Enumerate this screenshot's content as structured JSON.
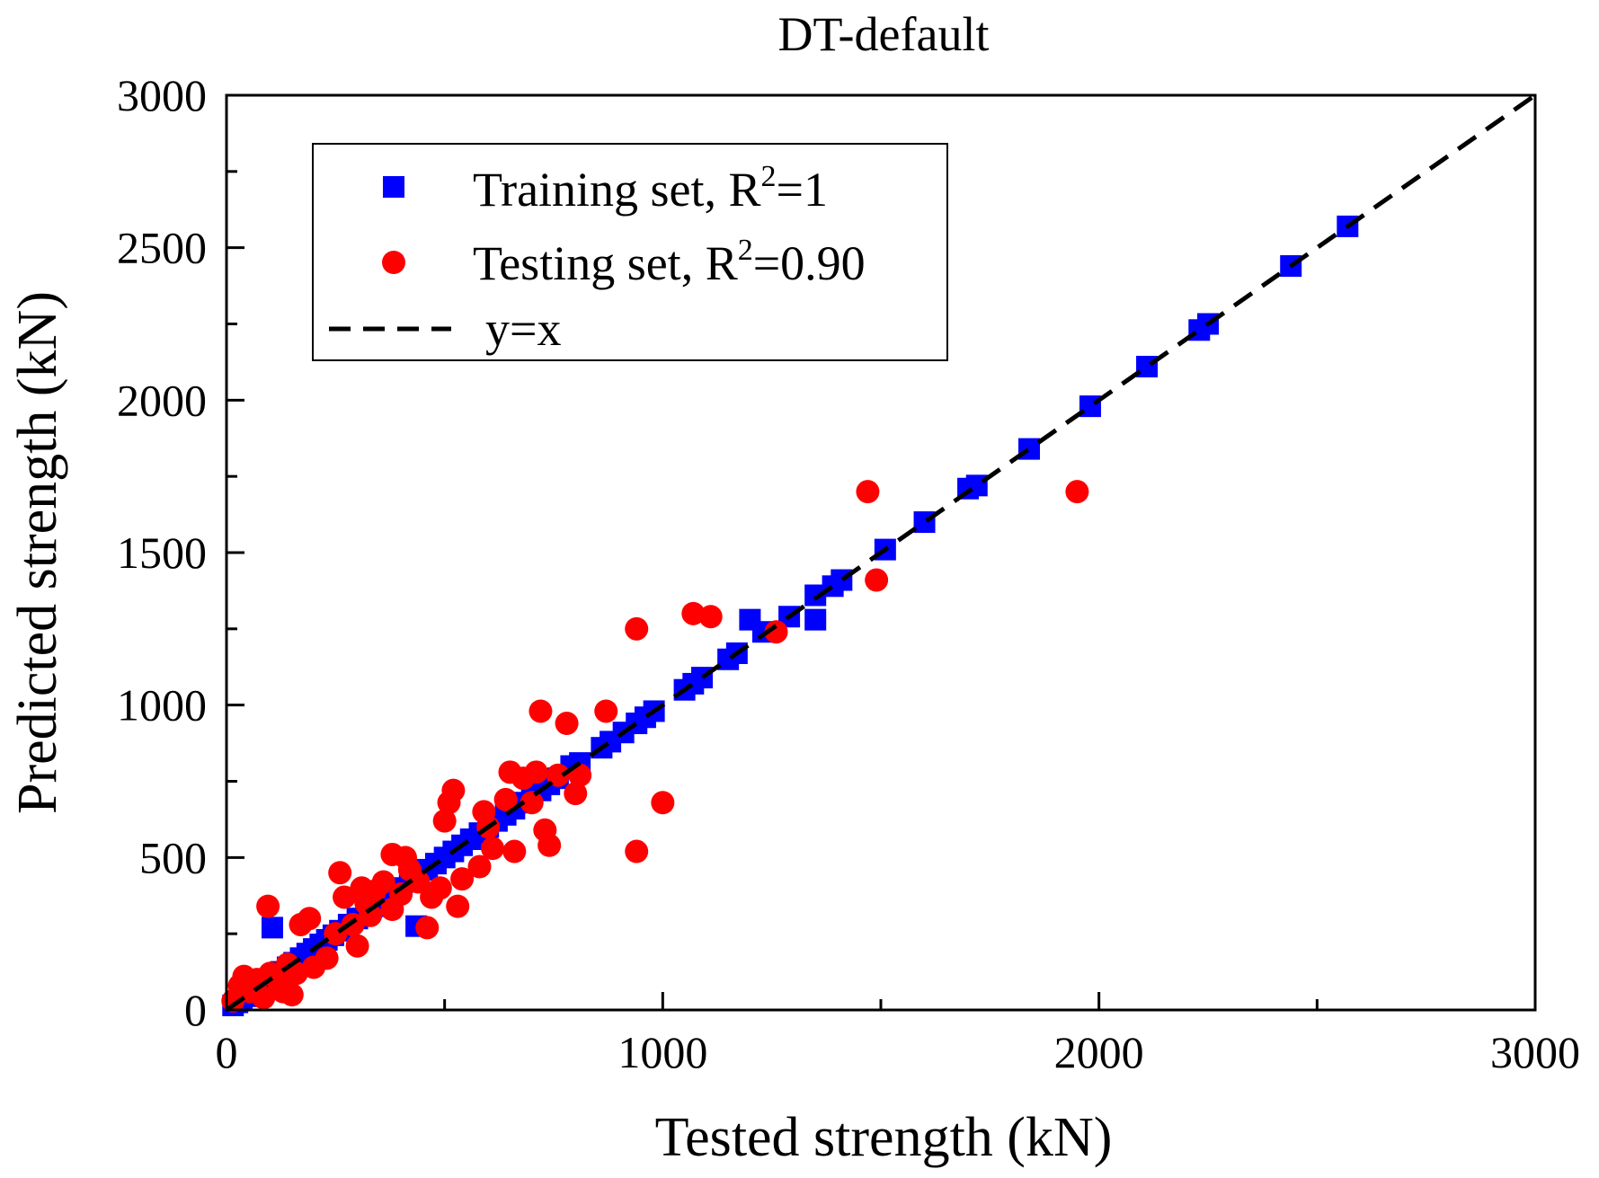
{
  "chart_data": {
    "type": "scatter",
    "title": "DT-default",
    "xlabel": "Tested strength (kN)",
    "ylabel": "Predicted strength (kN)",
    "xlim": [
      0,
      3000
    ],
    "ylim": [
      0,
      3000
    ],
    "xticks": [
      0,
      1000,
      2000,
      3000
    ],
    "yticks": [
      0,
      500,
      1000,
      1500,
      2000,
      2500,
      3000
    ],
    "grid": false,
    "legend_position": "top-left",
    "series": [
      {
        "name": "Training set, R²=1",
        "legend_text": "Training set, R",
        "legend_sup": "2",
        "legend_suffix": "=1",
        "marker": "square",
        "color": "#0000ff",
        "points": [
          [
            15,
            15
          ],
          [
            25,
            25
          ],
          [
            35,
            35
          ],
          [
            45,
            45
          ],
          [
            55,
            55
          ],
          [
            65,
            65
          ],
          [
            80,
            80
          ],
          [
            95,
            95
          ],
          [
            105,
            270
          ],
          [
            110,
            110
          ],
          [
            125,
            125
          ],
          [
            140,
            140
          ],
          [
            155,
            155
          ],
          [
            170,
            170
          ],
          [
            185,
            185
          ],
          [
            200,
            200
          ],
          [
            215,
            215
          ],
          [
            230,
            230
          ],
          [
            245,
            245
          ],
          [
            260,
            260
          ],
          [
            280,
            280
          ],
          [
            300,
            300
          ],
          [
            320,
            320
          ],
          [
            340,
            340
          ],
          [
            360,
            360
          ],
          [
            380,
            380
          ],
          [
            400,
            400
          ],
          [
            420,
            420
          ],
          [
            435,
            275
          ],
          [
            440,
            440
          ],
          [
            460,
            460
          ],
          [
            480,
            480
          ],
          [
            500,
            500
          ],
          [
            520,
            520
          ],
          [
            540,
            540
          ],
          [
            560,
            560
          ],
          [
            580,
            580
          ],
          [
            600,
            600
          ],
          [
            620,
            620
          ],
          [
            640,
            640
          ],
          [
            660,
            660
          ],
          [
            680,
            680
          ],
          [
            700,
            700
          ],
          [
            720,
            720
          ],
          [
            740,
            740
          ],
          [
            760,
            760
          ],
          [
            790,
            800
          ],
          [
            810,
            810
          ],
          [
            860,
            860
          ],
          [
            880,
            880
          ],
          [
            910,
            910
          ],
          [
            940,
            940
          ],
          [
            960,
            960
          ],
          [
            980,
            980
          ],
          [
            1050,
            1050
          ],
          [
            1070,
            1070
          ],
          [
            1090,
            1090
          ],
          [
            1150,
            1150
          ],
          [
            1170,
            1170
          ],
          [
            1200,
            1280
          ],
          [
            1230,
            1240
          ],
          [
            1290,
            1290
          ],
          [
            1350,
            1280
          ],
          [
            1350,
            1360
          ],
          [
            1390,
            1390
          ],
          [
            1410,
            1410
          ],
          [
            1510,
            1510
          ],
          [
            1600,
            1600
          ],
          [
            1700,
            1710
          ],
          [
            1720,
            1720
          ],
          [
            1840,
            1840
          ],
          [
            1980,
            1980
          ],
          [
            2110,
            2110
          ],
          [
            2230,
            2230
          ],
          [
            2250,
            2250
          ],
          [
            2440,
            2440
          ],
          [
            2570,
            2570
          ]
        ]
      },
      {
        "name": "Testing set, R²=0.90",
        "legend_text": "Testing set, R",
        "legend_sup": "2",
        "legend_suffix": "=0.90",
        "marker": "circle",
        "color": "#ff0000",
        "points": [
          [
            15,
            30
          ],
          [
            30,
            80
          ],
          [
            40,
            110
          ],
          [
            55,
            60
          ],
          [
            70,
            100
          ],
          [
            85,
            40
          ],
          [
            95,
            340
          ],
          [
            100,
            120
          ],
          [
            120,
            90
          ],
          [
            130,
            60
          ],
          [
            140,
            150
          ],
          [
            150,
            50
          ],
          [
            160,
            120
          ],
          [
            170,
            280
          ],
          [
            190,
            300
          ],
          [
            200,
            140
          ],
          [
            230,
            170
          ],
          [
            250,
            250
          ],
          [
            260,
            450
          ],
          [
            270,
            370
          ],
          [
            290,
            280
          ],
          [
            300,
            210
          ],
          [
            310,
            400
          ],
          [
            320,
            350
          ],
          [
            330,
            310
          ],
          [
            340,
            390
          ],
          [
            360,
            420
          ],
          [
            380,
            330
          ],
          [
            380,
            510
          ],
          [
            400,
            380
          ],
          [
            410,
            500
          ],
          [
            420,
            460
          ],
          [
            440,
            420
          ],
          [
            460,
            270
          ],
          [
            470,
            370
          ],
          [
            490,
            400
          ],
          [
            500,
            620
          ],
          [
            510,
            680
          ],
          [
            520,
            720
          ],
          [
            530,
            340
          ],
          [
            540,
            430
          ],
          [
            580,
            470
          ],
          [
            590,
            650
          ],
          [
            600,
            600
          ],
          [
            610,
            530
          ],
          [
            640,
            690
          ],
          [
            650,
            780
          ],
          [
            660,
            520
          ],
          [
            680,
            760
          ],
          [
            700,
            680
          ],
          [
            710,
            780
          ],
          [
            720,
            980
          ],
          [
            730,
            590
          ],
          [
            740,
            540
          ],
          [
            760,
            770
          ],
          [
            780,
            940
          ],
          [
            800,
            710
          ],
          [
            810,
            770
          ],
          [
            870,
            980
          ],
          [
            940,
            520
          ],
          [
            940,
            1250
          ],
          [
            1000,
            680
          ],
          [
            1070,
            1300
          ],
          [
            1110,
            1290
          ],
          [
            1260,
            1240
          ],
          [
            1470,
            1700
          ],
          [
            1490,
            1410
          ],
          [
            1950,
            1700
          ]
        ]
      },
      {
        "name": "y=x",
        "legend_text": "y=x",
        "marker": "dashed-line",
        "color": "#000000",
        "points": [
          [
            0,
            0
          ],
          [
            3000,
            3000
          ]
        ]
      }
    ]
  }
}
